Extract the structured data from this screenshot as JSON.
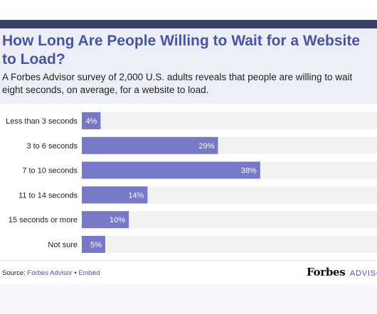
{
  "title": "How Long Are People Willing to Wait for a Website to Load?",
  "subtitle": "A Forbes Advisor survey of 2,000 U.S. adults reveals that people are willing to wait eight seconds, on average, for a website to load.",
  "footer": {
    "source_prefix": "Source:",
    "source_name": "Forbes Advisor",
    "separator": "•",
    "embed": "Embed",
    "brand_logo": "Forbes",
    "brand_suffix": "ADVISOR"
  },
  "colors": {
    "bar": "#7579c8",
    "track": "#f2f2f2",
    "title": "#4754a8",
    "top_bar": "#3c3f68",
    "header_bg": "#eceff6"
  },
  "chart_data": {
    "type": "bar",
    "orientation": "horizontal",
    "categories": [
      "Less than 3 seconds",
      "3 to 6 seconds",
      "7 to 10 seconds",
      "11 to 14 seconds",
      "15 seconds or more",
      "Not sure"
    ],
    "values": [
      4,
      29,
      38,
      14,
      10,
      5
    ],
    "value_labels": [
      "4%",
      "29%",
      "38%",
      "14%",
      "10%",
      "5%"
    ],
    "unit": "%",
    "xlim": [
      0,
      100
    ],
    "grid": false,
    "legend": "none"
  }
}
